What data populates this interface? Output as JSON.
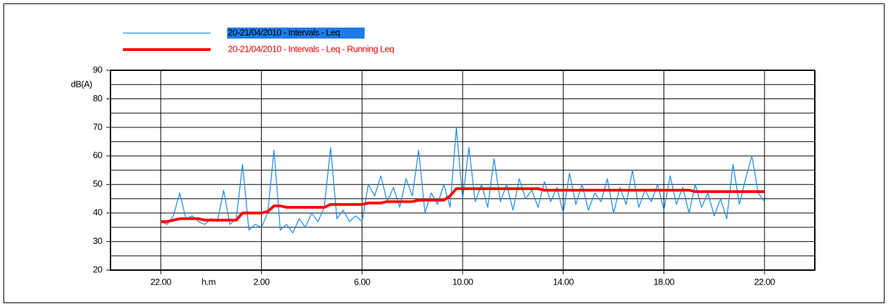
{
  "chart_data": {
    "type": "line",
    "y_label": "dB(A)",
    "x_label": "h.m",
    "legend": "top-left",
    "grid": true,
    "ylim": [
      20,
      90
    ],
    "yticks": [
      20,
      30,
      40,
      50,
      60,
      70,
      80,
      90
    ],
    "minor_yticks": [
      25,
      35,
      45,
      55,
      65,
      75,
      85
    ],
    "xlim": [
      20,
      48
    ],
    "xticks": [
      {
        "value": 22,
        "label": "22.00"
      },
      {
        "value": 26,
        "label": "2.00"
      },
      {
        "value": 30,
        "label": "6.00"
      },
      {
        "value": 34,
        "label": "10.00"
      },
      {
        "value": 38,
        "label": "14.00"
      },
      {
        "value": 42,
        "label": "18.00"
      },
      {
        "value": 46,
        "label": "22.00"
      }
    ],
    "x": [
      22,
      22.25,
      22.5,
      22.75,
      23,
      23.25,
      23.5,
      23.75,
      24,
      24.25,
      24.5,
      24.75,
      25,
      25.25,
      25.5,
      25.75,
      26,
      26.25,
      26.5,
      26.75,
      27,
      27.25,
      27.5,
      27.75,
      28,
      28.25,
      28.5,
      28.75,
      29,
      29.25,
      29.5,
      29.75,
      30,
      30.25,
      30.5,
      30.75,
      31,
      31.25,
      31.5,
      31.75,
      32,
      32.25,
      32.5,
      32.75,
      33,
      33.25,
      33.5,
      33.75,
      34,
      34.25,
      34.5,
      34.75,
      35,
      35.25,
      35.5,
      35.75,
      36,
      36.25,
      36.5,
      36.75,
      37,
      37.25,
      37.5,
      37.75,
      38,
      38.25,
      38.5,
      38.75,
      39,
      39.25,
      39.5,
      39.75,
      40,
      40.25,
      40.5,
      40.75,
      41,
      41.25,
      41.5,
      41.75,
      42,
      42.25,
      42.5,
      42.75,
      43,
      43.25,
      43.5,
      43.75,
      44,
      44.25,
      44.5,
      44.75,
      45,
      45.25,
      45.5,
      45.75,
      46
    ],
    "series": [
      {
        "name": "20-21/04/2010 - Intervals - Leq",
        "color": "#1e8cf0",
        "width": 1.3,
        "values": [
          37,
          36,
          39,
          47,
          38,
          39,
          37,
          36,
          38,
          37,
          48,
          36,
          38,
          57,
          34,
          36,
          35,
          40,
          62,
          34,
          36,
          33,
          38,
          35,
          40,
          37,
          42,
          63,
          38,
          41,
          37,
          39,
          37,
          50,
          46,
          53,
          44,
          49,
          42,
          52,
          46,
          62,
          40,
          47,
          43,
          50,
          42,
          70,
          45,
          63,
          44,
          50,
          42,
          59,
          44,
          50,
          41,
          52,
          45,
          48,
          42,
          51,
          44,
          49,
          40,
          54,
          43,
          50,
          41,
          47,
          44,
          52,
          40,
          49,
          43,
          55,
          42,
          48,
          44,
          50,
          41,
          53,
          43,
          49,
          40,
          50,
          42,
          47,
          39,
          45,
          38,
          57,
          43,
          52,
          60,
          47,
          44
        ]
      },
      {
        "name": "20-21/04/2010 - Intervals - Leq - Running Leq",
        "color": "#ff0000",
        "width": 4,
        "values": [
          37,
          37,
          37.5,
          38,
          38,
          38,
          38,
          37.5,
          37.5,
          37.5,
          37.5,
          37.5,
          37.5,
          40,
          40,
          40,
          40,
          40.5,
          42.5,
          42.5,
          42,
          42,
          42,
          42,
          42,
          42,
          42,
          43,
          43,
          43,
          43,
          43,
          43,
          43.5,
          43.5,
          43.5,
          44,
          44,
          44,
          44,
          44,
          44.5,
          44.5,
          44.5,
          44.5,
          44.5,
          46,
          48.5,
          48.5,
          48.5,
          48.5,
          48.5,
          48.5,
          48.5,
          48.5,
          48.5,
          48.5,
          48.5,
          48.5,
          48.5,
          48.5,
          48,
          48,
          48,
          48,
          48,
          48,
          48,
          48,
          48,
          48,
          48,
          48,
          48,
          48,
          48,
          48,
          48,
          48,
          48,
          48,
          48,
          48,
          48,
          48,
          47.5,
          47.5,
          47.5,
          47.5,
          47.5,
          47.5,
          47.5,
          47.5,
          47.5,
          47.5,
          47.5,
          47.5
        ]
      }
    ]
  }
}
